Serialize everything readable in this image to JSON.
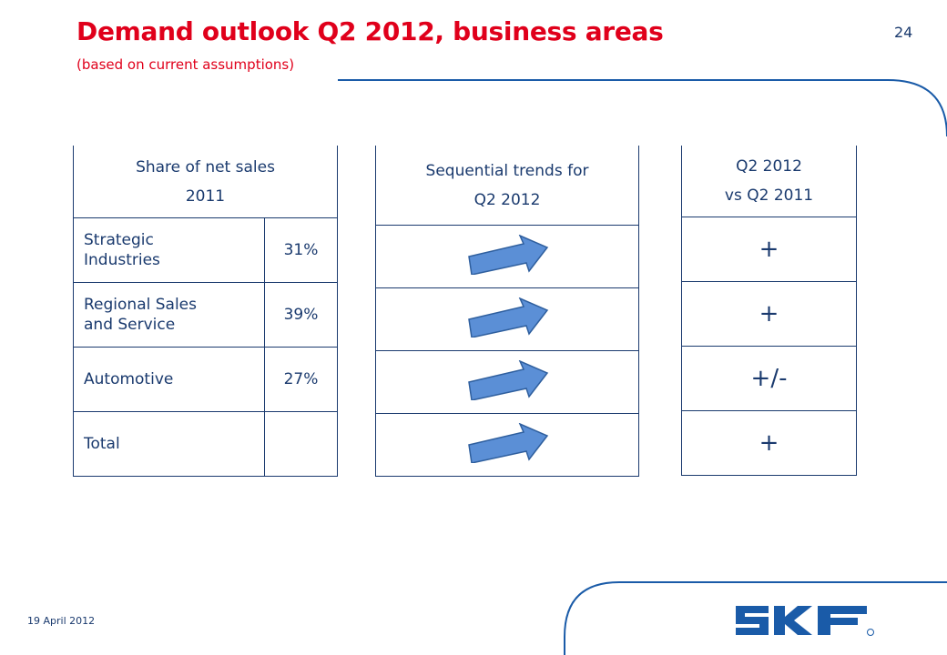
{
  "header": {
    "title": "Demand outlook Q2 2012, business areas",
    "subtitle": "(based on current assumptions)",
    "page_number": "24"
  },
  "share_table": {
    "header": [
      "Share of net sales",
      "2011"
    ],
    "rows": [
      {
        "segment": [
          "Strategic",
          "Industries"
        ],
        "share": "31%"
      },
      {
        "segment": [
          "Regional Sales",
          "and Service"
        ],
        "share": "39%"
      },
      {
        "segment": [
          "Automotive"
        ],
        "share": "27%"
      },
      {
        "segment": [
          "Total"
        ],
        "share": ""
      }
    ]
  },
  "trend_table": {
    "header": [
      "Sequential trends for",
      "Q2 2012"
    ],
    "rows": [
      {
        "trend": "up-right-arrow-icon"
      },
      {
        "trend": "up-right-arrow-icon"
      },
      {
        "trend": "up-right-arrow-icon"
      },
      {
        "trend": "up-right-arrow-icon"
      }
    ]
  },
  "yoy_table": {
    "header": [
      "Q2 2012",
      "vs Q2 2011"
    ],
    "rows": [
      "+",
      "+",
      "+/-",
      "+"
    ]
  },
  "footer": {
    "date": "19 April 2012",
    "logo_text": "SKF"
  },
  "colors": {
    "brand_red": "#e0001b",
    "brand_blue": "#1a3a6e",
    "arrow_fill": "#5b8fd6"
  }
}
